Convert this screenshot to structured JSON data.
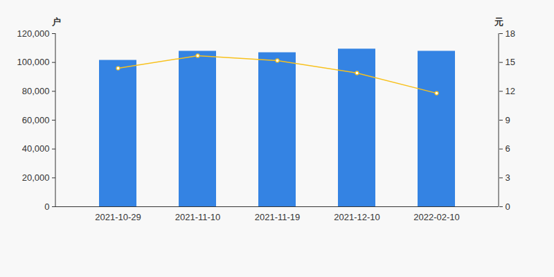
{
  "chart_data": {
    "type": "bar",
    "ylabel": "户",
    "y2label": "元",
    "categories": [
      "2021-10-29",
      "2021-11-10",
      "2021-11-19",
      "2021-12-10",
      "2022-02-10"
    ],
    "series": [
      {
        "type": "bar",
        "color": "#3483e3",
        "values": [
          101500,
          107800,
          106800,
          109300,
          107800
        ]
      },
      {
        "type": "line",
        "axis": "y2",
        "color": "#f8c11c",
        "marker": "circle",
        "values": [
          14.4,
          15.7,
          15.2,
          13.9,
          11.8
        ]
      }
    ],
    "ylim": [
      0,
      120000
    ],
    "yticks": [
      {
        "value": 0,
        "label": "0"
      },
      {
        "value": 20000,
        "label": "20,000"
      },
      {
        "value": 40000,
        "label": "40,000"
      },
      {
        "value": 60000,
        "label": "60,000"
      },
      {
        "value": 80000,
        "label": "80,000"
      },
      {
        "value": 100000,
        "label": "100,000"
      },
      {
        "value": 120000,
        "label": "120,000"
      }
    ],
    "y2lim": [
      0,
      18
    ],
    "y2ticks": [
      0,
      3,
      6,
      9,
      12,
      15,
      18
    ],
    "grid": false
  }
}
